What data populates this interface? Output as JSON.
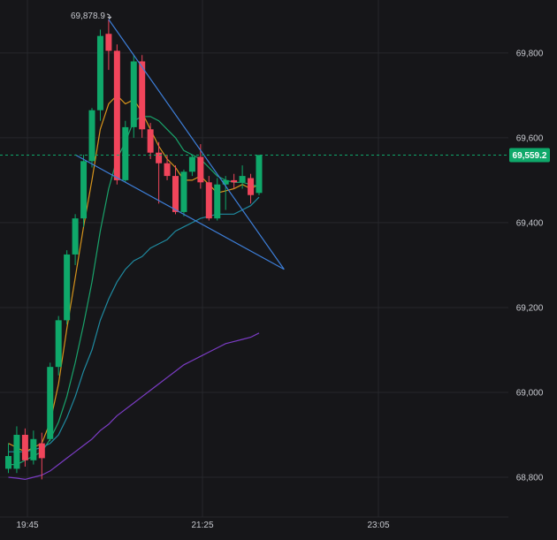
{
  "chart_data": {
    "type": "candlestick",
    "y_axis": {
      "ticks": [
        68800,
        69000,
        69200,
        69400,
        69600,
        69800
      ],
      "range": [
        68715,
        69905
      ],
      "position": "right"
    },
    "x_axis": {
      "tick_labels": [
        "19:45",
        "21:25",
        "23:05"
      ]
    },
    "grid": true,
    "last_price": 69559.2,
    "last_price_label": "69,559.2",
    "high_marker_label": "69,878.9",
    "colors": {
      "up": "#0fa86a",
      "down": "#f0455b",
      "last_price_tag": "#0fa86a",
      "trendline": "#3d7ed8",
      "ma_fast": "#d6941c",
      "ma_mid": "#19a36b",
      "ma_slow": "#1f8aa0",
      "ma_long": "#7b3cc4"
    },
    "candles": [
      {
        "x": 0,
        "o": 68820,
        "h": 68880,
        "c": 68850,
        "l": 68810
      },
      {
        "x": 1,
        "o": 68820,
        "h": 68920,
        "c": 68900,
        "l": 68810
      },
      {
        "x": 2,
        "o": 68900,
        "h": 68915,
        "c": 68840,
        "l": 68825
      },
      {
        "x": 3,
        "o": 68840,
        "h": 68910,
        "c": 68890,
        "l": 68830
      },
      {
        "x": 4,
        "o": 68880,
        "h": 68905,
        "c": 68845,
        "l": 68795
      },
      {
        "x": 5,
        "o": 68890,
        "h": 69070,
        "c": 69060,
        "l": 68885
      },
      {
        "x": 6,
        "o": 69060,
        "h": 69180,
        "c": 69170,
        "l": 69040
      },
      {
        "x": 7,
        "o": 69170,
        "h": 69335,
        "c": 69325,
        "l": 69160
      },
      {
        "x": 8,
        "o": 69325,
        "h": 69420,
        "c": 69410,
        "l": 69300
      },
      {
        "x": 9,
        "o": 69410,
        "h": 69560,
        "c": 69545,
        "l": 69390
      },
      {
        "x": 10,
        "o": 69545,
        "h": 69670,
        "c": 69665,
        "l": 69530
      },
      {
        "x": 11,
        "o": 69665,
        "h": 69855,
        "c": 69840,
        "l": 69640
      },
      {
        "x": 12,
        "o": 69845,
        "h": 69878.9,
        "c": 69805,
        "l": 69760
      },
      {
        "x": 13,
        "o": 69805,
        "h": 69820,
        "c": 69500,
        "l": 69490
      },
      {
        "x": 14,
        "o": 69500,
        "h": 69640,
        "c": 69625,
        "l": 69495
      },
      {
        "x": 15,
        "o": 69625,
        "h": 69795,
        "c": 69780,
        "l": 69600
      },
      {
        "x": 16,
        "o": 69780,
        "h": 69795,
        "c": 69620,
        "l": 69600
      },
      {
        "x": 17,
        "o": 69620,
        "h": 69635,
        "c": 69565,
        "l": 69550
      },
      {
        "x": 18,
        "o": 69565,
        "h": 69590,
        "c": 69540,
        "l": 69445
      },
      {
        "x": 19,
        "o": 69540,
        "h": 69560,
        "c": 69510,
        "l": 69500
      },
      {
        "x": 20,
        "o": 69510,
        "h": 69535,
        "c": 69425,
        "l": 69420
      },
      {
        "x": 21,
        "o": 69425,
        "h": 69525,
        "c": 69520,
        "l": 69415
      },
      {
        "x": 22,
        "o": 69520,
        "h": 69560,
        "c": 69555,
        "l": 69510
      },
      {
        "x": 23,
        "o": 69555,
        "h": 69585,
        "c": 69495,
        "l": 69480
      },
      {
        "x": 24,
        "o": 69495,
        "h": 69510,
        "c": 69410,
        "l": 69405
      },
      {
        "x": 25,
        "o": 69410,
        "h": 69505,
        "c": 69490,
        "l": 69405
      },
      {
        "x": 26,
        "o": 69490,
        "h": 69510,
        "c": 69500,
        "l": 69430
      },
      {
        "x": 27,
        "o": 69500,
        "h": 69515,
        "c": 69495,
        "l": 69480
      },
      {
        "x": 28,
        "o": 69495,
        "h": 69535,
        "c": 69510,
        "l": 69480
      },
      {
        "x": 29,
        "o": 69505,
        "h": 69515,
        "c": 69465,
        "l": 69445
      },
      {
        "x": 30,
        "o": 69470,
        "h": 69560,
        "c": 69559.2,
        "l": 69465
      }
    ],
    "lines": [
      {
        "name": "ma_fast",
        "points": [
          [
            0,
            68880
          ],
          [
            1,
            68870
          ],
          [
            2,
            68860
          ],
          [
            3,
            68870
          ],
          [
            4,
            68880
          ],
          [
            5,
            68930
          ],
          [
            6,
            69020
          ],
          [
            7,
            69150
          ],
          [
            8,
            69270
          ],
          [
            9,
            69390
          ],
          [
            10,
            69500
          ],
          [
            11,
            69620
          ],
          [
            12,
            69680
          ],
          [
            13,
            69700
          ],
          [
            14,
            69680
          ],
          [
            15,
            69690
          ],
          [
            16,
            69660
          ],
          [
            17,
            69620
          ],
          [
            18,
            69580
          ],
          [
            19,
            69550
          ],
          [
            20,
            69530
          ],
          [
            21,
            69500
          ],
          [
            22,
            69500
          ],
          [
            23,
            69510
          ],
          [
            24,
            69490
          ],
          [
            25,
            69470
          ],
          [
            26,
            69475
          ],
          [
            27,
            69480
          ],
          [
            28,
            69490
          ],
          [
            29,
            69480
          ],
          [
            30,
            69490
          ]
        ]
      },
      {
        "name": "ma_mid",
        "points": [
          [
            0,
            68830
          ],
          [
            1,
            68830
          ],
          [
            2,
            68840
          ],
          [
            3,
            68850
          ],
          [
            4,
            68860
          ],
          [
            5,
            68890
          ],
          [
            6,
            68930
          ],
          [
            7,
            68990
          ],
          [
            8,
            69070
          ],
          [
            9,
            69160
          ],
          [
            10,
            69260
          ],
          [
            11,
            69380
          ],
          [
            12,
            69480
          ],
          [
            13,
            69550
          ],
          [
            14,
            69590
          ],
          [
            15,
            69640
          ],
          [
            16,
            69650
          ],
          [
            17,
            69650
          ],
          [
            18,
            69640
          ],
          [
            19,
            69620
          ],
          [
            20,
            69600
          ],
          [
            21,
            69570
          ],
          [
            22,
            69560
          ],
          [
            23,
            69550
          ],
          [
            24,
            69530
          ],
          [
            25,
            69510
          ],
          [
            26,
            69500
          ],
          [
            27,
            69495
          ],
          [
            28,
            69495
          ],
          [
            29,
            69490
          ],
          [
            30,
            69485
          ]
        ]
      },
      {
        "name": "ma_slow",
        "points": [
          [
            0,
            68860
          ],
          [
            1,
            68860
          ],
          [
            2,
            68860
          ],
          [
            3,
            68865
          ],
          [
            4,
            68870
          ],
          [
            5,
            68880
          ],
          [
            6,
            68900
          ],
          [
            7,
            68940
          ],
          [
            8,
            68990
          ],
          [
            9,
            69050
          ],
          [
            10,
            69100
          ],
          [
            11,
            69170
          ],
          [
            12,
            69220
          ],
          [
            13,
            69260
          ],
          [
            14,
            69290
          ],
          [
            15,
            69310
          ],
          [
            16,
            69320
          ],
          [
            17,
            69340
          ],
          [
            18,
            69350
          ],
          [
            19,
            69360
          ],
          [
            20,
            69380
          ],
          [
            21,
            69390
          ],
          [
            22,
            69400
          ],
          [
            23,
            69410
          ],
          [
            24,
            69415
          ],
          [
            25,
            69420
          ],
          [
            26,
            69420
          ],
          [
            27,
            69420
          ],
          [
            28,
            69430
          ],
          [
            29,
            69440
          ],
          [
            30,
            69460
          ]
        ]
      },
      {
        "name": "ma_long",
        "points": [
          [
            0,
            68800
          ],
          [
            1,
            68798
          ],
          [
            2,
            68795
          ],
          [
            3,
            68800
          ],
          [
            4,
            68805
          ],
          [
            5,
            68815
          ],
          [
            6,
            68830
          ],
          [
            7,
            68845
          ],
          [
            8,
            68860
          ],
          [
            9,
            68875
          ],
          [
            10,
            68890
          ],
          [
            11,
            68910
          ],
          [
            12,
            68925
          ],
          [
            13,
            68945
          ],
          [
            14,
            68960
          ],
          [
            15,
            68975
          ],
          [
            16,
            68990
          ],
          [
            17,
            69005
          ],
          [
            18,
            69020
          ],
          [
            19,
            69035
          ],
          [
            20,
            69050
          ],
          [
            21,
            69065
          ],
          [
            22,
            69075
          ],
          [
            23,
            69085
          ],
          [
            24,
            69095
          ],
          [
            25,
            69105
          ],
          [
            26,
            69115
          ],
          [
            27,
            69120
          ],
          [
            28,
            69125
          ],
          [
            29,
            69130
          ],
          [
            30,
            69140
          ]
        ]
      }
    ],
    "trendlines": [
      {
        "from": [
          12,
          69878.9
        ],
        "to": [
          33,
          69290
        ]
      },
      {
        "from": [
          8,
          69560
        ],
        "to": [
          33,
          69290
        ]
      }
    ]
  }
}
